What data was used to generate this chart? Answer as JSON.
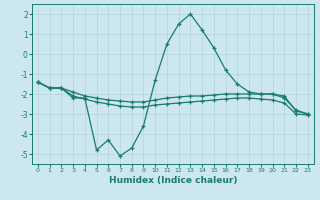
{
  "title": "",
  "xlabel": "Humidex (Indice chaleur)",
  "bg_color": "#cce8ee",
  "grid_color": "#b8d8de",
  "line_color": "#1a7a6e",
  "x_values": [
    0,
    1,
    2,
    3,
    4,
    5,
    6,
    7,
    8,
    9,
    10,
    11,
    12,
    13,
    14,
    15,
    16,
    17,
    18,
    19,
    20,
    21,
    22,
    23
  ],
  "line1": [
    -1.4,
    -1.7,
    -1.7,
    -2.2,
    -2.2,
    -4.8,
    -4.3,
    -5.1,
    -4.7,
    -3.6,
    -1.3,
    0.5,
    1.5,
    2.0,
    1.2,
    0.3,
    -0.8,
    -1.5,
    -1.9,
    -2.0,
    -2.0,
    -2.2,
    -2.8,
    -3.0
  ],
  "line2": [
    -1.4,
    -1.7,
    -1.7,
    -1.9,
    -2.1,
    -2.2,
    -2.3,
    -2.35,
    -2.4,
    -2.4,
    -2.3,
    -2.2,
    -2.15,
    -2.1,
    -2.1,
    -2.05,
    -2.0,
    -2.0,
    -2.0,
    -2.0,
    -2.0,
    -2.1,
    -2.85,
    -3.0
  ],
  "line3": [
    -1.4,
    -1.7,
    -1.7,
    -2.1,
    -2.25,
    -2.4,
    -2.5,
    -2.6,
    -2.65,
    -2.65,
    -2.55,
    -2.5,
    -2.45,
    -2.4,
    -2.35,
    -2.3,
    -2.25,
    -2.2,
    -2.2,
    -2.25,
    -2.3,
    -2.45,
    -3.0,
    -3.05
  ],
  "ylim": [
    -5.5,
    2.5
  ],
  "xlim": [
    -0.5,
    23.5
  ],
  "yticks": [
    -5,
    -4,
    -3,
    -2,
    -1,
    0,
    1,
    2
  ],
  "xticks": [
    0,
    1,
    2,
    3,
    4,
    5,
    6,
    7,
    8,
    9,
    10,
    11,
    12,
    13,
    14,
    15,
    16,
    17,
    18,
    19,
    20,
    21,
    22,
    23
  ],
  "marker": "+"
}
